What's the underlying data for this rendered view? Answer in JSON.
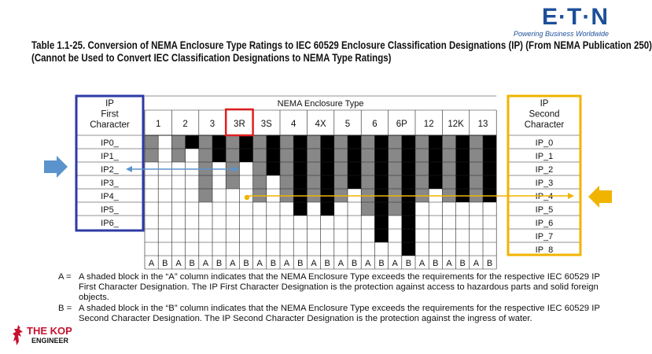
{
  "title": {
    "line1": "Table 1.1-25. Conversion of NEMA Enclosure Type Ratings to IEC 60529 Enclosure Classification Designations (IP) (From NEMA Publication 250)",
    "line2": "(Cannot be Used to Convert IEC Classification Designations to NEMA Type Ratings)"
  },
  "brand": {
    "name": "E·T·N",
    "tagline": "Powering Business Worldwide"
  },
  "table": {
    "left_header": [
      "IP",
      "First",
      "Character"
    ],
    "right_header": [
      "IP",
      "Second",
      "Character"
    ],
    "middle_header": "NEMA Enclosure Type",
    "types": [
      "1",
      "2",
      "3",
      "3R",
      "3S",
      "4",
      "4X",
      "5",
      "6",
      "6P",
      "12",
      "12K",
      "13"
    ],
    "first_chars": [
      "IP0_",
      "IP1_",
      "IP2_",
      "IP3_",
      "IP4_",
      "IP5_",
      "IP6_"
    ],
    "second_chars": [
      "IP_0",
      "IP_1",
      "IP_2",
      "IP_3",
      "IP_4",
      "IP_5",
      "IP_6",
      "IP_7",
      "IP_8"
    ],
    "col_labels": [
      "A",
      "B"
    ],
    "a_depth": [
      2,
      2,
      5,
      4,
      5,
      5,
      5,
      5,
      6,
      6,
      5,
      5,
      5
    ],
    "b_depth": [
      0,
      1,
      2,
      2,
      3,
      6,
      6,
      4,
      8,
      9,
      4,
      5,
      5
    ]
  },
  "colors": {
    "a_shade": "#888888",
    "b_shade": "#000000",
    "left_box": "#2e3aa5",
    "right_box": "#f0b400",
    "highlight": "#e02020",
    "arrow_blue": "#5b93cc",
    "arrow_gold": "#f0b400"
  },
  "notes": [
    {
      "key": "A =",
      "text": "A shaded block in the “A” column indicates that the NEMA Enclosure Type exceeds the requirements for the respective IEC 60529 IP First Character Designation. The IP First Character Designation is the protection against access to hazardous parts and solid foreign objects."
    },
    {
      "key": "B =",
      "text": "A shaded block in the “B” column indicates that the NEMA Enclosure Type exceeds the requirements for the respective IEC 60529 IP Second Character Designation. The IP Second Character Designation is the protection against the ingress of water."
    }
  ],
  "watermark": {
    "line1": "THE KOP",
    "line2": "ENGINEER"
  }
}
